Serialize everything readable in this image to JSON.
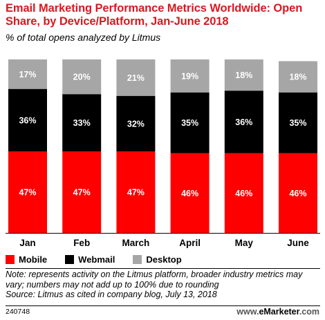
{
  "header": {
    "title": "Email Marketing Performance Metrics Worldwide: Open Share, by Device/Platform, Jan-June 2018",
    "subtitle": "% of total opens analyzed by Litmus"
  },
  "colors": {
    "Mobile": "#ff0000",
    "Webmail": "#000000",
    "Desktop": "#a6a6a6",
    "title": "#d71920"
  },
  "chart_data": {
    "type": "bar",
    "stacked": true,
    "categories": [
      "Jan",
      "Feb",
      "March",
      "April",
      "May",
      "June"
    ],
    "series": [
      {
        "name": "Mobile",
        "values": [
          47,
          47,
          47,
          46,
          46,
          46
        ],
        "labels": [
          "47%",
          "47%",
          "47%",
          "46%",
          "46%",
          "46%"
        ]
      },
      {
        "name": "Webmail",
        "values": [
          36,
          33,
          32,
          35,
          36,
          35
        ],
        "labels": [
          "36%",
          "33%",
          "32%",
          "35%",
          "36%",
          "35%"
        ]
      },
      {
        "name": "Desktop",
        "values": [
          17,
          20,
          21,
          19,
          18,
          18
        ],
        "labels": [
          "17%",
          "20%",
          "21%",
          "19%",
          "18%",
          "18%"
        ]
      }
    ],
    "ylim": [
      0,
      100
    ],
    "grid": false,
    "legend": "bottom-left"
  },
  "legend": {
    "items": [
      "Mobile",
      "Webmail",
      "Desktop"
    ]
  },
  "footer": {
    "note": "Note: represents activity on the Litmus platform, broader industry metrics may vary; numbers may not add up to 100% due to rounding",
    "source": "Source: Litmus as cited in company blog, July 13, 2018",
    "chart_id": "240748",
    "brand_prefix": "www.",
    "brand_name": "eMarketer",
    "brand_suffix": ".com"
  }
}
